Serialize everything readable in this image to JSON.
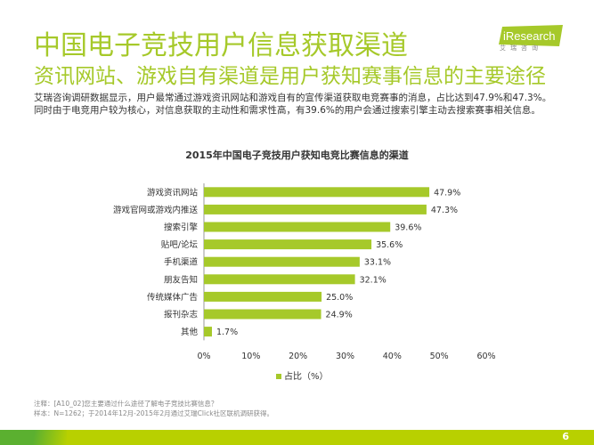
{
  "header": {
    "title": "中国电子竞技用户信息获取渠道",
    "subtitle": "资讯网站、游戏自有渠道是用户获知赛事信息的主要途径",
    "logo": "iResearch",
    "logo_sub": "艾瑞咨询"
  },
  "description": "艾瑞咨询调研数据显示，用户最常通过游戏资讯网站和游戏自有的宣传渠道获取电竞赛事的消息，占比达到47.9%和47.3%。同时由于电竞用户较为核心，对信息获取的主动性和需求性高，有39.6%的用户会通过搜索引擎主动去搜索赛事相关信息。",
  "chart_data": {
    "type": "bar",
    "orientation": "horizontal",
    "title": "2015年中国电子竞技用户获知电竞比赛信息的渠道",
    "categories": [
      "游戏资讯网站",
      "游戏官网或游戏内推送",
      "搜索引擎",
      "贴吧/论坛",
      "手机渠道",
      "朋友告知",
      "传统媒体广告",
      "报刊杂志",
      "其他"
    ],
    "series": [
      {
        "name": "占比（%）",
        "values": [
          47.9,
          47.3,
          39.6,
          35.6,
          33.1,
          32.1,
          25.0,
          24.9,
          1.7
        ],
        "color": "#a6c92a"
      }
    ],
    "data_labels": [
      "47.9%",
      "47.3%",
      "39.6%",
      "35.6%",
      "33.1%",
      "32.1%",
      "25.0%",
      "24.9%",
      "1.7%"
    ],
    "xlim": [
      0,
      60
    ],
    "xticks": [
      "0%",
      "10%",
      "20%",
      "30%",
      "40%",
      "50%",
      "60%"
    ],
    "grid": false,
    "legend": "bottom"
  },
  "notes": [
    "注释：[A10_02]您主要通过什么途径了解电子竞技比赛信息？",
    "样本：N=1262；于2014年12月-2015年2月通过艾瑞Click社区联机调研获得。"
  ],
  "page_number": "6"
}
